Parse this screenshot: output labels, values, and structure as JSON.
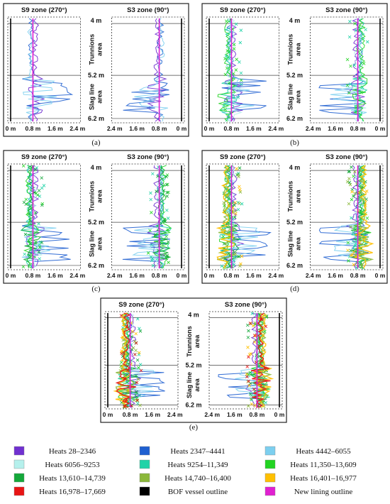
{
  "chart_data": {
    "type": "line",
    "depth_labels": [
      "4 m",
      "5.2 m",
      "6.2 m"
    ],
    "area_labels": [
      [
        "Trunnions",
        "area"
      ],
      [
        "Slag line",
        "area"
      ]
    ],
    "panels": [
      {
        "caption": "(a)",
        "n": 3
      },
      {
        "caption": "(b)",
        "n": 6
      },
      {
        "caption": "(c)",
        "n": 7
      },
      {
        "caption": "(d)",
        "n": 9
      },
      {
        "caption": "(e)",
        "n": 10
      }
    ],
    "zones": [
      {
        "title": "S9 zone (270°)",
        "ticks": [
          "0 m",
          "0.8 m",
          "1.6 m",
          "2.4 m"
        ],
        "direction": "left-to-right"
      },
      {
        "title": "S3 zone (90°)",
        "ticks": [
          "2.4 m",
          "1.6 m",
          "0.8 m",
          "0 m"
        ],
        "direction": "right-to-left"
      }
    ],
    "depth_range_m": [
      3.85,
      6.3
    ],
    "x_range_m": [
      0,
      2.4
    ],
    "new_lining_outline_m": 0.8,
    "bof_vessel_outline_m": 0,
    "series": [
      {
        "name": "Heats 28–2346",
        "color": "#7030d0"
      },
      {
        "name": "Heats 2347–4441",
        "color": "#1f5fd0"
      },
      {
        "name": "Heats 4442–6055",
        "color": "#7ccfef"
      },
      {
        "name": "Heats 6056–9253",
        "color": "#b5f0ec"
      },
      {
        "name": "Heats 9254–11,349",
        "color": "#20d3a8"
      },
      {
        "name": "Heats 11,350–13,609",
        "color": "#22d422"
      },
      {
        "name": "Heats 13,610–14,739",
        "color": "#14a83a"
      },
      {
        "name": "Heats 14,740–16,400",
        "color": "#8bb83a"
      },
      {
        "name": "Heats 16,401–16,977",
        "color": "#ffc000"
      },
      {
        "name": "Heats 16,978–17,669",
        "color": "#e81414"
      },
      {
        "name": "BOF vessel outline",
        "color": "#000000"
      },
      {
        "name": "New lining outline",
        "color": "#e020d0"
      }
    ]
  }
}
